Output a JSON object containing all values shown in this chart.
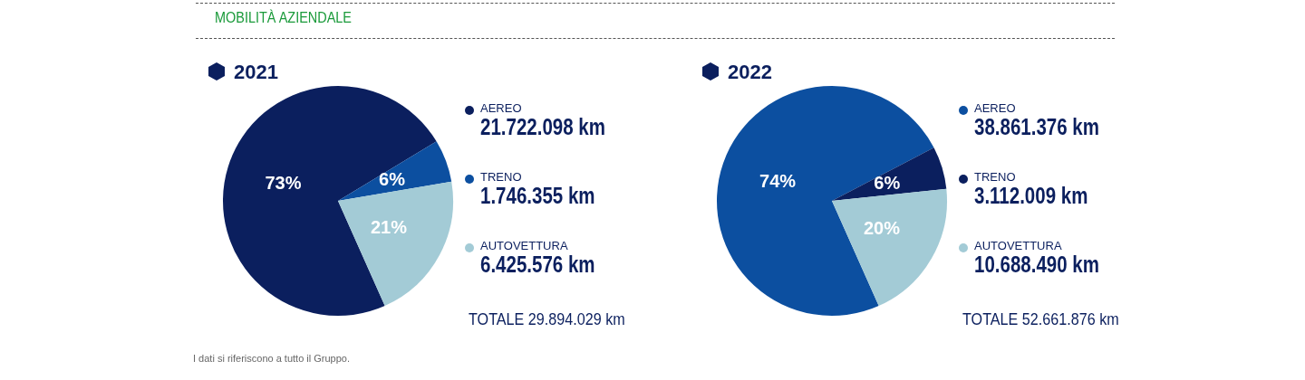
{
  "chart_data": [
    {
      "type": "pie",
      "title": "2021",
      "subtitle": "MOBILITÀ AZIENDALE",
      "categories": [
        "AEREO",
        "TRENO",
        "AUTOVETTURA"
      ],
      "values": [
        73,
        6,
        21
      ],
      "colors": [
        "#0b1f5e",
        "#0c4fa0",
        "#a3cbd6"
      ],
      "value_labels": [
        "73%",
        "6%",
        "21%"
      ],
      "legend": "right",
      "annotations": [
        "21.722.098 km",
        "1.746.355 km",
        "6.425.576 km",
        "TOTALE 29.894.029 km",
        "I dati si riferiscono a tutto il Gruppo."
      ]
    },
    {
      "type": "pie",
      "title": "2022",
      "categories": [
        "AEREO",
        "TRENO",
        "AUTOVETTURA"
      ],
      "values": [
        74,
        6,
        20
      ],
      "colors": [
        "#0c4fa0",
        "#0b1f5e",
        "#a3cbd6"
      ],
      "value_labels": [
        "74%",
        "6%",
        "20%"
      ],
      "legend": "right",
      "annotations": [
        "38.861.376 km",
        "3.112.009 km",
        "10.688.490 km",
        "TOTALE 52.661.876 km"
      ]
    }
  ]
}
